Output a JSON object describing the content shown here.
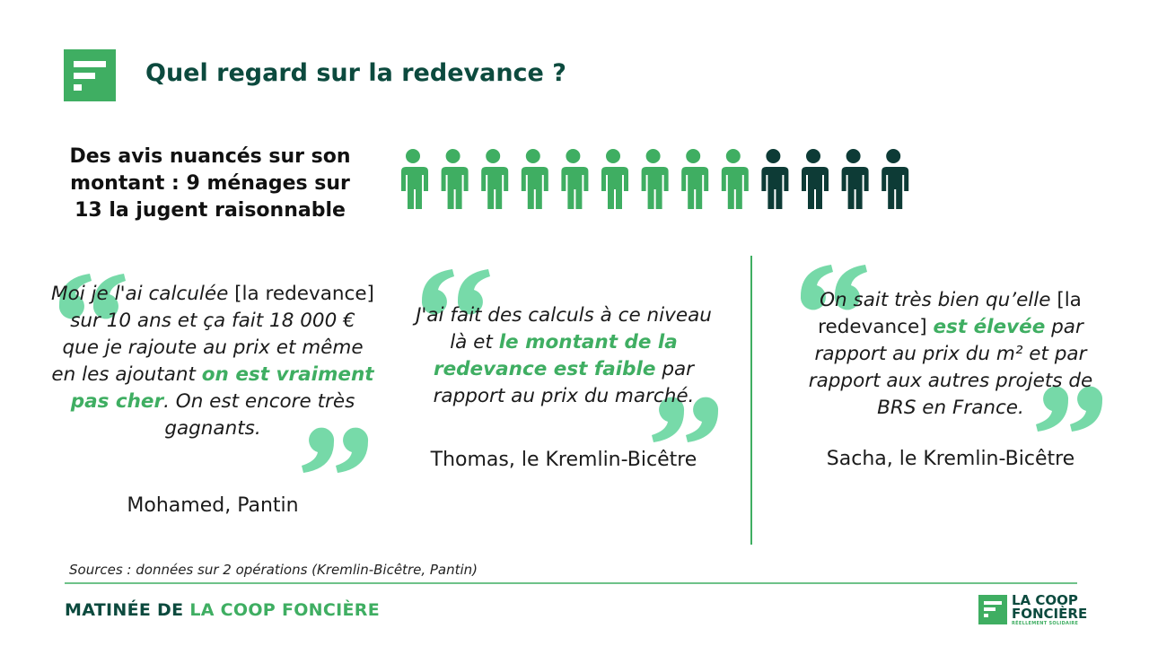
{
  "header": {
    "title": "Quel regard sur la redevance ?"
  },
  "headline": "Des avis nuancés sur son montant : 9 ménages sur 13 la jugent raisonnable",
  "pictogram": {
    "total": 13,
    "highlighted": 9,
    "highlight_color": "#3fae62",
    "base_color": "#0d3b36"
  },
  "quotes": [
    {
      "segments": [
        {
          "text": "Moi je l'ai calculée ",
          "style": "italic"
        },
        {
          "text": "[la redevance]",
          "style": "normal"
        },
        {
          "text": " sur 10 ans et ça fait 18 000 € que je rajoute au prix et même en les ajoutant ",
          "style": "italic"
        },
        {
          "text": "on est vraiment pas cher",
          "style": "highlight"
        },
        {
          "text": ". On est encore très gagnants.",
          "style": "italic"
        }
      ],
      "author": "Mohamed, Pantin"
    },
    {
      "segments": [
        {
          "text": "J'ai fait des calculs à ce niveau là et ",
          "style": "italic"
        },
        {
          "text": "le montant de la redevance est faible",
          "style": "highlight"
        },
        {
          "text": " par rapport au prix du marché.",
          "style": "italic"
        }
      ],
      "author": "Thomas, le Kremlin-Bicêtre"
    },
    {
      "segments": [
        {
          "text": "On sait très bien qu’elle ",
          "style": "italic"
        },
        {
          "text": "[la redevance]",
          "style": "normal"
        },
        {
          "text": " ",
          "style": "italic"
        },
        {
          "text": "est élevée",
          "style": "highlight"
        },
        {
          "text": " par rapport au prix du m² et par rapport aux autres projets de BRS en France.",
          "style": "italic"
        }
      ],
      "author": "Sacha, le Kremlin-Bicêtre"
    }
  ],
  "source": "Sources : données sur 2 opérations (Kremlin-Bicêtre, Pantin)",
  "footer": {
    "event_prefix": "MATINÉE DE",
    "event_name": "LA COOP FONCIÈRE",
    "logo_line1": "LA COOP",
    "logo_line2": "FONCIÈRE",
    "tagline": "RÉELLEMENT SOLIDAIRE"
  }
}
